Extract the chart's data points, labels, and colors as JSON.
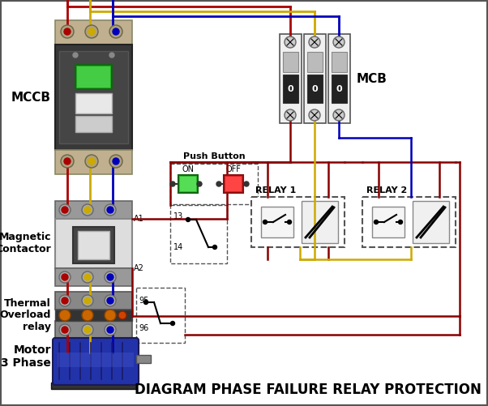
{
  "title": "DIAGRAM PHASE FAILURE RELAY PROTECTION",
  "title_fontsize": 12,
  "bg_color": "#ffffff",
  "red": "#aa0000",
  "yellow": "#ccaa00",
  "blue": "#0000bb",
  "dark_red": "#660000",
  "labels": {
    "MCCB": "MCCB",
    "MCB": "MCB",
    "magnetic": "Magnetic\nContactor",
    "thermal": "Thermal\nOverload\nrelay",
    "motor": "Motor\n3 Phase",
    "push_button": "Push Button",
    "on": "ON",
    "off": "OFF",
    "relay1": "RELAY 1",
    "relay2": "RELAY 2",
    "A1": "A1",
    "A2": "A2",
    "t13": "13",
    "t14": "14",
    "t95": "95",
    "t96": "96"
  }
}
